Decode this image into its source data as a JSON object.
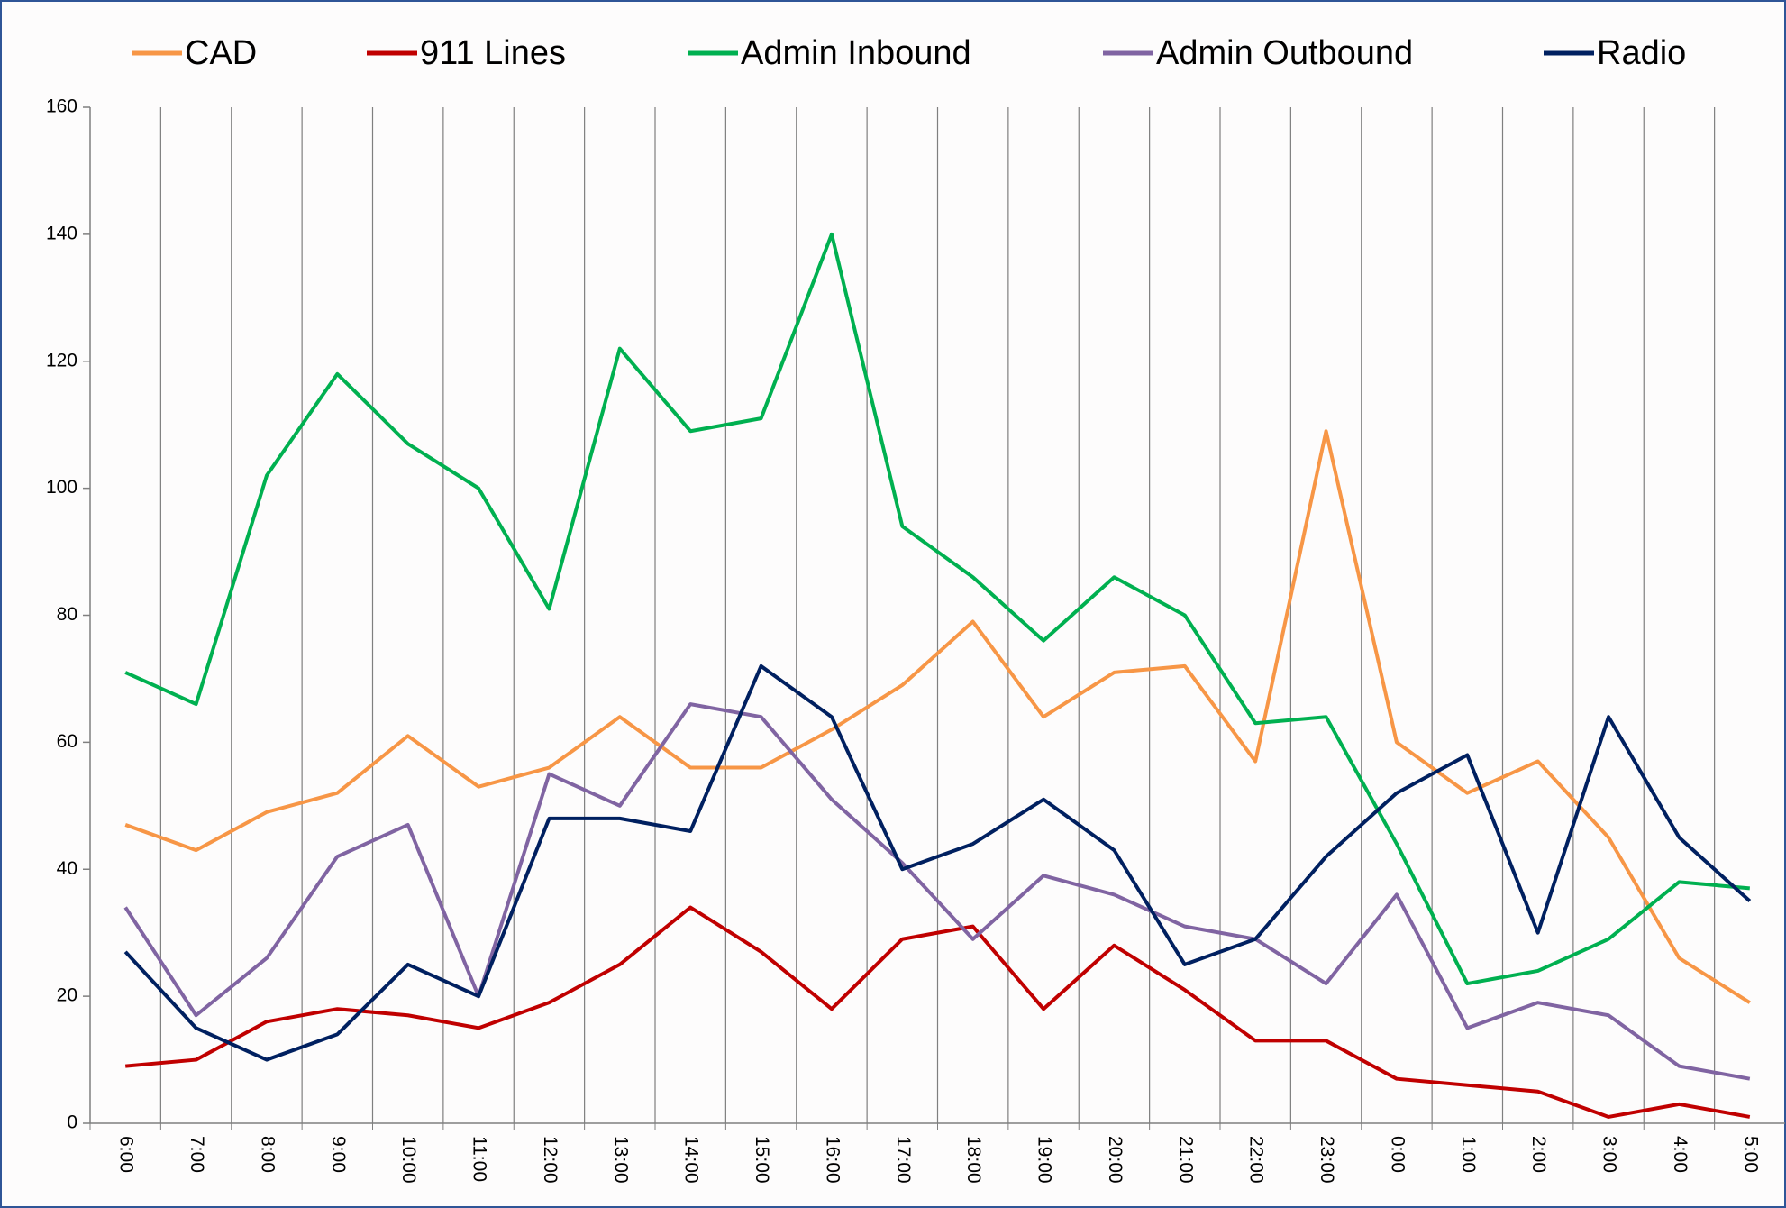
{
  "chart_data": {
    "type": "line",
    "categories": [
      "6:00",
      "7:00",
      "8:00",
      "9:00",
      "10:00",
      "11:00",
      "12:00",
      "13:00",
      "14:00",
      "15:00",
      "16:00",
      "17:00",
      "18:00",
      "19:00",
      "20:00",
      "21:00",
      "22:00",
      "23:00",
      "0:00",
      "1:00",
      "2:00",
      "3:00",
      "4:00",
      "5:00"
    ],
    "series": [
      {
        "name": "CAD",
        "color": "#f79646",
        "values": [
          47,
          43,
          49,
          52,
          61,
          53,
          56,
          64,
          56,
          56,
          62,
          69,
          79,
          64,
          71,
          72,
          57,
          109,
          60,
          52,
          57,
          45,
          26,
          19
        ]
      },
      {
        "name": "911 Lines",
        "color": "#c00000",
        "values": [
          9,
          10,
          16,
          18,
          17,
          15,
          19,
          25,
          34,
          27,
          18,
          29,
          31,
          18,
          28,
          21,
          13,
          13,
          7,
          6,
          5,
          1,
          3,
          1
        ]
      },
      {
        "name": "Admin Inbound",
        "color": "#00b050",
        "values": [
          71,
          66,
          102,
          118,
          107,
          100,
          81,
          122,
          109,
          111,
          140,
          94,
          86,
          76,
          86,
          80,
          63,
          64,
          44,
          22,
          24,
          29,
          38,
          37
        ]
      },
      {
        "name": "Admin Outbound",
        "color": "#8064a2",
        "values": [
          34,
          17,
          26,
          42,
          47,
          20,
          55,
          50,
          66,
          64,
          51,
          41,
          29,
          39,
          36,
          31,
          29,
          22,
          36,
          15,
          19,
          17,
          9,
          7
        ]
      },
      {
        "name": "Radio",
        "color": "#002060",
        "values": [
          27,
          15,
          10,
          14,
          25,
          20,
          48,
          48,
          46,
          72,
          64,
          40,
          44,
          51,
          43,
          25,
          29,
          42,
          52,
          58,
          30,
          64,
          45,
          35
        ]
      }
    ],
    "ylim": [
      0,
      160
    ],
    "yticks": [
      0,
      20,
      40,
      60,
      80,
      100,
      120,
      140,
      160
    ],
    "legend": "top"
  }
}
